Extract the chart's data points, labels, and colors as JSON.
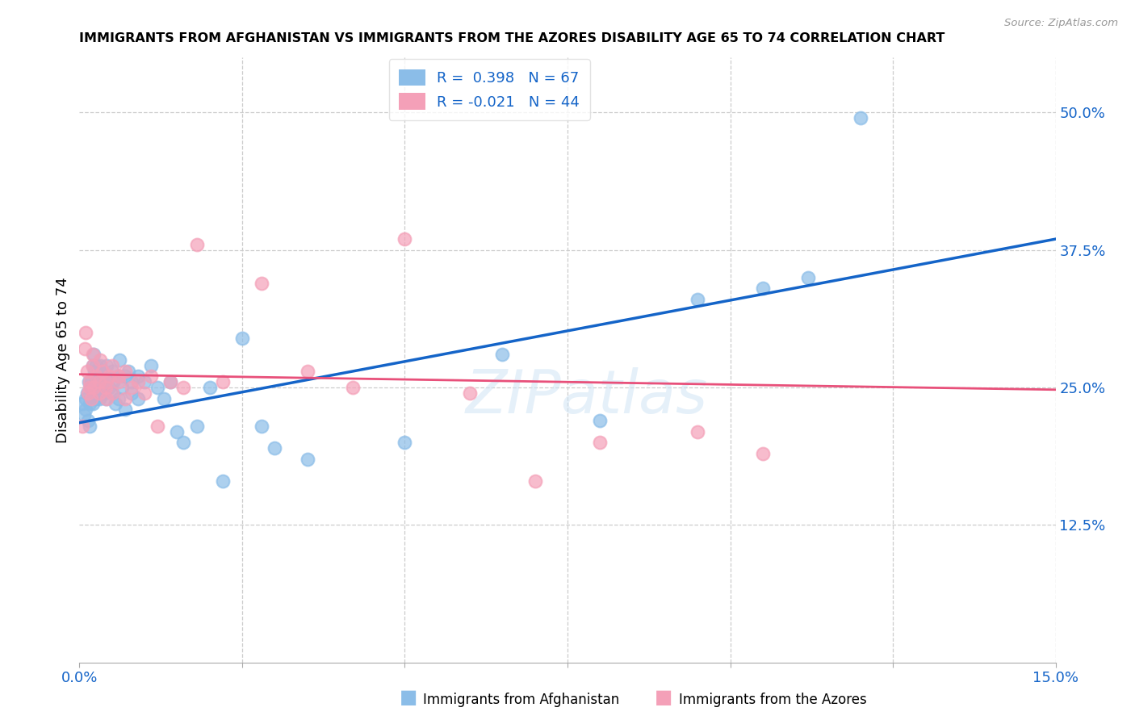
{
  "title": "IMMIGRANTS FROM AFGHANISTAN VS IMMIGRANTS FROM THE AZORES DISABILITY AGE 65 TO 74 CORRELATION CHART",
  "source": "Source: ZipAtlas.com",
  "ylabel": "Disability Age 65 to 74",
  "x_min": 0.0,
  "x_max": 0.15,
  "y_min": 0.0,
  "y_max": 0.55,
  "x_ticks": [
    0.0,
    0.025,
    0.05,
    0.075,
    0.1,
    0.125,
    0.15
  ],
  "y_ticks": [
    0.125,
    0.25,
    0.375,
    0.5
  ],
  "y_tick_labels": [
    "12.5%",
    "25.0%",
    "37.5%",
    "50.0%"
  ],
  "color_afghanistan": "#8BBDE8",
  "color_azores": "#F4A0B8",
  "line_color_afghanistan": "#1464C8",
  "line_color_azores": "#E8507A",
  "R_afghanistan": 0.398,
  "N_afghanistan": 67,
  "R_azores": -0.021,
  "N_azores": 44,
  "watermark": "ZIPatlas",
  "afghanistan_x": [
    0.0005,
    0.0007,
    0.0009,
    0.001,
    0.0012,
    0.0013,
    0.0014,
    0.0015,
    0.0016,
    0.0017,
    0.0018,
    0.002,
    0.002,
    0.0022,
    0.0023,
    0.0024,
    0.0025,
    0.0026,
    0.0027,
    0.0028,
    0.003,
    0.003,
    0.0032,
    0.0033,
    0.0035,
    0.0036,
    0.0038,
    0.004,
    0.004,
    0.0042,
    0.0045,
    0.005,
    0.005,
    0.0052,
    0.0055,
    0.006,
    0.006,
    0.0062,
    0.0065,
    0.007,
    0.007,
    0.0075,
    0.008,
    0.008,
    0.009,
    0.009,
    0.01,
    0.011,
    0.012,
    0.013,
    0.014,
    0.015,
    0.016,
    0.018,
    0.02,
    0.022,
    0.025,
    0.028,
    0.03,
    0.035,
    0.05,
    0.065,
    0.08,
    0.095,
    0.105,
    0.112,
    0.12
  ],
  "afghanistan_y": [
    0.235,
    0.225,
    0.24,
    0.23,
    0.245,
    0.22,
    0.255,
    0.235,
    0.215,
    0.25,
    0.255,
    0.27,
    0.235,
    0.28,
    0.265,
    0.24,
    0.255,
    0.27,
    0.245,
    0.26,
    0.255,
    0.24,
    0.27,
    0.25,
    0.265,
    0.255,
    0.245,
    0.26,
    0.24,
    0.27,
    0.25,
    0.245,
    0.265,
    0.255,
    0.235,
    0.26,
    0.24,
    0.275,
    0.25,
    0.26,
    0.23,
    0.265,
    0.255,
    0.245,
    0.26,
    0.24,
    0.255,
    0.27,
    0.25,
    0.24,
    0.255,
    0.21,
    0.2,
    0.215,
    0.25,
    0.165,
    0.295,
    0.215,
    0.195,
    0.185,
    0.2,
    0.28,
    0.22,
    0.33,
    0.34,
    0.35,
    0.495
  ],
  "azores_x": [
    0.0005,
    0.0008,
    0.001,
    0.0012,
    0.0013,
    0.0015,
    0.0016,
    0.0018,
    0.002,
    0.002,
    0.0022,
    0.0025,
    0.003,
    0.003,
    0.0032,
    0.0035,
    0.004,
    0.004,
    0.0042,
    0.0045,
    0.005,
    0.005,
    0.006,
    0.006,
    0.007,
    0.007,
    0.008,
    0.009,
    0.01,
    0.011,
    0.012,
    0.014,
    0.016,
    0.018,
    0.022,
    0.028,
    0.035,
    0.042,
    0.05,
    0.06,
    0.07,
    0.08,
    0.095,
    0.105
  ],
  "azores_y": [
    0.215,
    0.285,
    0.3,
    0.265,
    0.245,
    0.255,
    0.25,
    0.24,
    0.28,
    0.27,
    0.25,
    0.26,
    0.255,
    0.245,
    0.275,
    0.265,
    0.255,
    0.25,
    0.24,
    0.26,
    0.27,
    0.245,
    0.26,
    0.255,
    0.24,
    0.265,
    0.25,
    0.255,
    0.245,
    0.26,
    0.215,
    0.255,
    0.25,
    0.38,
    0.255,
    0.345,
    0.265,
    0.25,
    0.385,
    0.245,
    0.165,
    0.2,
    0.21,
    0.19
  ]
}
